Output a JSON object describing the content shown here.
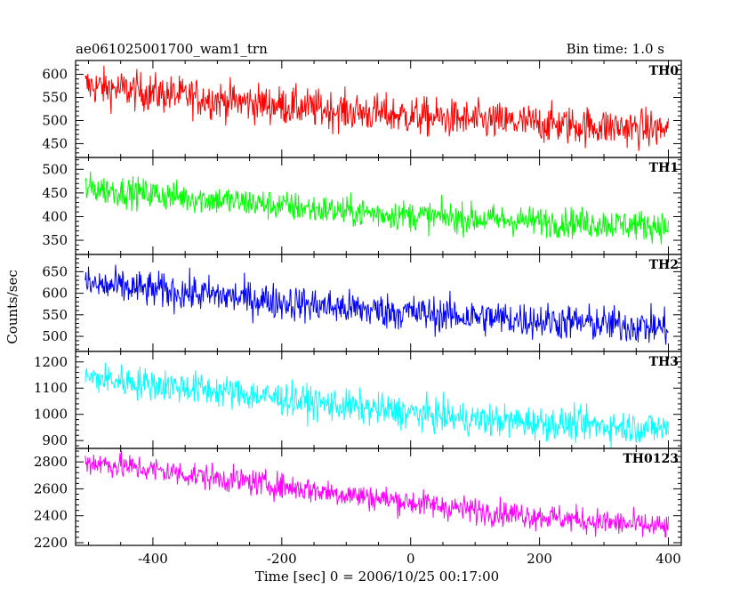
{
  "chart_data": {
    "type": "line",
    "title": "ae061025001700_wam1_trn",
    "subtitle": "Bin time: 1.0 s",
    "xlabel": "Time [sec] 0 = 2006/10/25 00:17:00",
    "ylabel": "Counts/sec",
    "xlim": [
      -520,
      420
    ],
    "x_ticks": [
      "-400",
      "-200",
      "0",
      "200",
      "400"
    ],
    "x_tick_values": [
      -400,
      -200,
      0,
      200,
      400
    ],
    "data_x_range": [
      -505,
      400
    ],
    "grid": false,
    "panels": [
      {
        "name": "TH0",
        "color": "#ff0000",
        "ylim": [
          420,
          630
        ],
        "y_ticks": [
          "450",
          "500",
          "550",
          "600"
        ],
        "y_tick_values": [
          450,
          500,
          550,
          600
        ],
        "trend": [
          [
            -500,
            575
          ],
          [
            -300,
            545
          ],
          [
            -100,
            520
          ],
          [
            100,
            500
          ],
          [
            400,
            480
          ]
        ],
        "noise": 30
      },
      {
        "name": "TH1",
        "color": "#00ff00",
        "ylim": [
          320,
          525
        ],
        "y_ticks": [
          "350",
          "400",
          "450",
          "500"
        ],
        "y_tick_values": [
          350,
          400,
          450,
          500
        ],
        "trend": [
          [
            -500,
            460
          ],
          [
            -300,
            435
          ],
          [
            -100,
            410
          ],
          [
            100,
            395
          ],
          [
            400,
            380
          ]
        ],
        "noise": 23
      },
      {
        "name": "TH2",
        "color": "#0000ff",
        "ylim": [
          465,
          690
        ],
        "y_ticks": [
          "500",
          "550",
          "600",
          "650"
        ],
        "y_tick_values": [
          500,
          550,
          600,
          650
        ],
        "trend": [
          [
            -500,
            620
          ],
          [
            -300,
            595
          ],
          [
            -100,
            565
          ],
          [
            100,
            545
          ],
          [
            400,
            520
          ]
        ],
        "noise": 30
      },
      {
        "name": "TH3",
        "color": "#00ffff",
        "ylim": [
          870,
          1240
        ],
        "y_ticks": [
          "900",
          "1000",
          "1100",
          "1200"
        ],
        "y_tick_values": [
          900,
          1000,
          1100,
          1200
        ],
        "trend": [
          [
            -500,
            1140
          ],
          [
            -300,
            1090
          ],
          [
            -100,
            1030
          ],
          [
            100,
            980
          ],
          [
            400,
            945
          ]
        ],
        "noise": 45
      },
      {
        "name": "TH0123",
        "color": "#ff00ff",
        "ylim": [
          2180,
          2900
        ],
        "y_ticks": [
          "2200",
          "2400",
          "2600",
          "2800"
        ],
        "y_tick_values": [
          2200,
          2400,
          2600,
          2800
        ],
        "trend": [
          [
            -500,
            2800
          ],
          [
            -300,
            2680
          ],
          [
            -100,
            2560
          ],
          [
            100,
            2440
          ],
          [
            400,
            2310
          ]
        ],
        "noise": 70
      }
    ]
  }
}
